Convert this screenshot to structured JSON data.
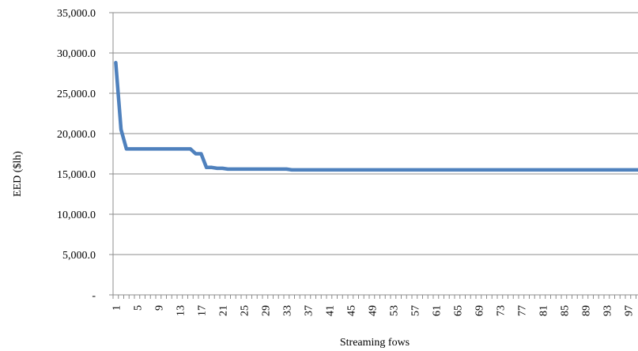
{
  "chart_data": {
    "type": "line",
    "title": "",
    "xlabel": "Streaming fows",
    "ylabel": "EED ($lh)",
    "ylim": [
      0,
      35000
    ],
    "yticks": [
      {
        "value": 0,
        "label": "-"
      },
      {
        "value": 5000,
        "label": "5,000.0"
      },
      {
        "value": 10000,
        "label": "10,000.0"
      },
      {
        "value": 15000,
        "label": "15,000.0"
      },
      {
        "value": 20000,
        "label": "20,000.0"
      },
      {
        "value": 25000,
        "label": "25,000.0"
      },
      {
        "value": 30000,
        "label": "30,000.0"
      },
      {
        "value": 35000,
        "label": "35,000.0"
      }
    ],
    "x_range": [
      1,
      100
    ],
    "xtick_labels": [
      "1",
      "5",
      "9",
      "13",
      "17",
      "21",
      "25",
      "29",
      "33",
      "37",
      "41",
      "45",
      "49",
      "53",
      "57",
      "61",
      "65",
      "69",
      "73",
      "77",
      "81",
      "85",
      "89",
      "93",
      "97"
    ],
    "grid": "horizontal",
    "legend": "none",
    "series": [
      {
        "color": "#4F81BD",
        "points": [
          [
            1,
            28800
          ],
          [
            2,
            20500
          ],
          [
            3,
            18100
          ],
          [
            4,
            18100
          ],
          [
            5,
            18100
          ],
          [
            6,
            18100
          ],
          [
            7,
            18100
          ],
          [
            8,
            18100
          ],
          [
            9,
            18100
          ],
          [
            10,
            18100
          ],
          [
            11,
            18100
          ],
          [
            12,
            18100
          ],
          [
            13,
            18100
          ],
          [
            14,
            18100
          ],
          [
            15,
            18100
          ],
          [
            16,
            17500
          ],
          [
            17,
            17500
          ],
          [
            18,
            15800
          ],
          [
            19,
            15800
          ],
          [
            20,
            15700
          ],
          [
            21,
            15700
          ],
          [
            22,
            15600
          ],
          [
            23,
            15600
          ],
          [
            25,
            15600
          ],
          [
            30,
            15600
          ],
          [
            33,
            15600
          ],
          [
            34,
            15500
          ],
          [
            40,
            15500
          ],
          [
            60,
            15500
          ],
          [
            80,
            15500
          ],
          [
            100,
            15500
          ]
        ]
      }
    ]
  }
}
